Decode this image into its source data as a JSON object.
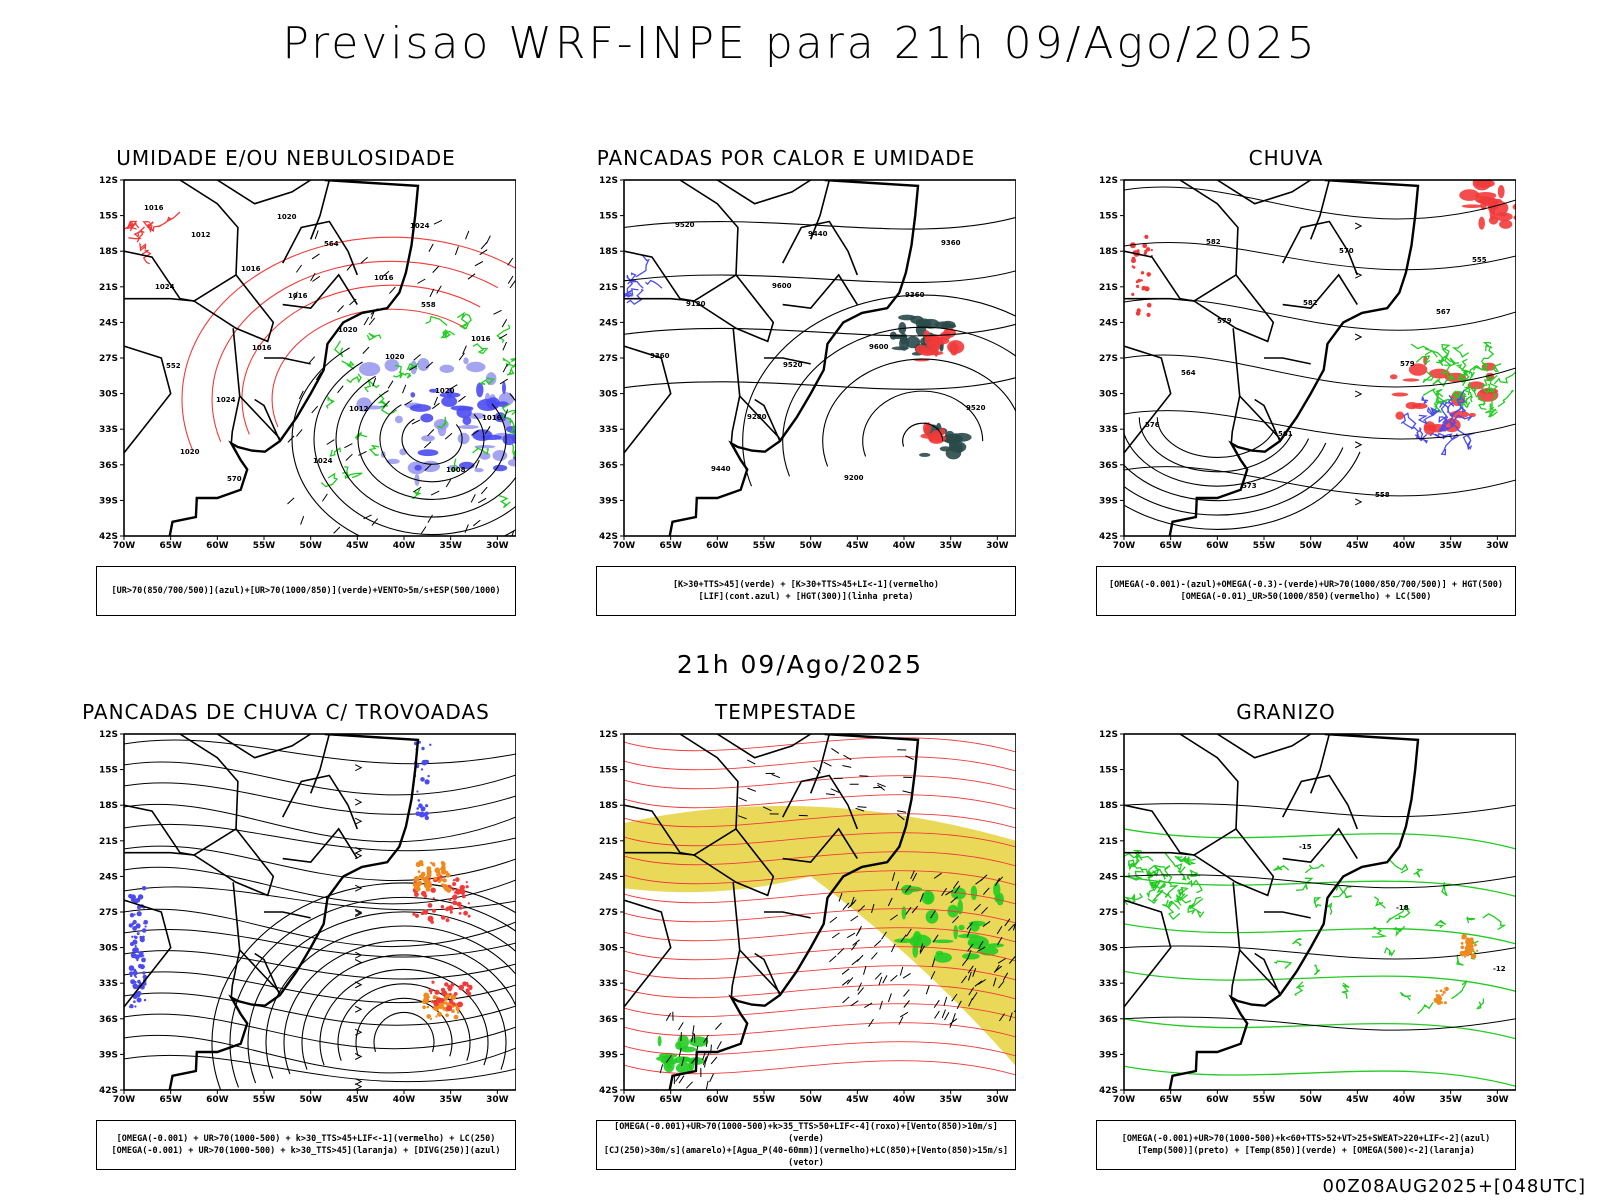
{
  "title": "Previsao WRF-INPE  para 21h 09/Ago/2025",
  "mid_label": "21h 09/Ago/2025",
  "run_label": "00Z08AUG2025+[048UTC]",
  "lat_ticks": [
    "12S",
    "15S",
    "18S",
    "21S",
    "24S",
    "27S",
    "30S",
    "33S",
    "36S",
    "39S",
    "42S"
  ],
  "lon_ticks": [
    "70W",
    "65W",
    "60W",
    "55W",
    "50W",
    "45W",
    "40W",
    "35W",
    "30W"
  ],
  "colors": {
    "blue": "#4b4bf0",
    "green": "#22cc22",
    "red": "#f23a3a",
    "orange": "#f08a1e",
    "yellow": "#e6d23c",
    "darkteal": "#2a4a4a",
    "lightblue": "#9a9af0"
  },
  "panels": [
    {
      "title": "UMIDADE E/OU NEBULOSIDADE",
      "legend": [
        "[UR>70(850/700/500)](azul)+[UR>70(1000/850)](verde)+VENTO>5m/s+ESP(500/1000)"
      ],
      "contour_labels": [
        "1016",
        "1016",
        "1020",
        "1020",
        "1020",
        "1020",
        "1016",
        "1016",
        "1024",
        "1024",
        "1024",
        "1024",
        "1016",
        "1012",
        "1008",
        "1012",
        "1016",
        "1020",
        "1016",
        "570",
        "564",
        "558",
        "552"
      ]
    },
    {
      "title": "PANCADAS POR CALOR E UMIDADE",
      "legend": [
        "[K>30+TTS>45](verde) + [K>30+TTS>45+LI<-1](vermelho)",
        "[LIF](cont.azul) + [HGT(300)](linha preta)"
      ],
      "contour_labels": [
        "9520",
        "9600",
        "9600",
        "9520",
        "9440",
        "9440",
        "9360",
        "9360",
        "9280",
        "9200",
        "9360",
        "9120",
        "9520"
      ]
    },
    {
      "title": "CHUVA",
      "legend": [
        "[OMEGA(-0.001)-(azul)+OMEGA(-0.3)-(verde)+UR>70(1000/850/700/500)] + HGT(500)",
        "[OMEGA(-0.01)_UR>50(1000/850)(vermelho) + LC(500)"
      ],
      "contour_labels": [
        "582",
        "582",
        "579",
        "576",
        "573",
        "570",
        "567",
        "564",
        "561",
        "558",
        "555",
        "579"
      ]
    },
    {
      "title": "PANCADAS DE CHUVA C/ TROVOADAS",
      "legend": [
        "[OMEGA(-0.001) + UR>70(1000-500) + k>30_TTS>45+LIF<-1](vermelho) + LC(250)",
        "[OMEGA(-0.001) + UR>70(1000-500) + k>30_TTS>45](laranja) + [DIVG(250)](azul)"
      ],
      "contour_labels": []
    },
    {
      "title": "TEMPESTADE",
      "legend": [
        "[OMEGA(-0.001)+UR>70(1000-500)+k>35_TTS>50+LIF<-4](roxo)+[Vento(850)>10m/s](verde)",
        "[CJ(250)>30m/s](amarelo)+[Agua_P(40-60mm)](vermelho)+LC(850)+[Vento(850)>15m/s](vetor)"
      ],
      "contour_labels": []
    },
    {
      "title": "GRANIZO",
      "legend": [
        "[OMEGA(-0.001)+UR>70(1000-500)+k<60+TTS>52+VT>25+SWEAT>220+LIF<-2](azul)",
        "[Temp(500)](preto) + [Temp(850)](verde) + [OMEGA(500)<-2](laranja)"
      ],
      "contour_labels": [
        "-15",
        "-18",
        "-12"
      ]
    }
  ]
}
